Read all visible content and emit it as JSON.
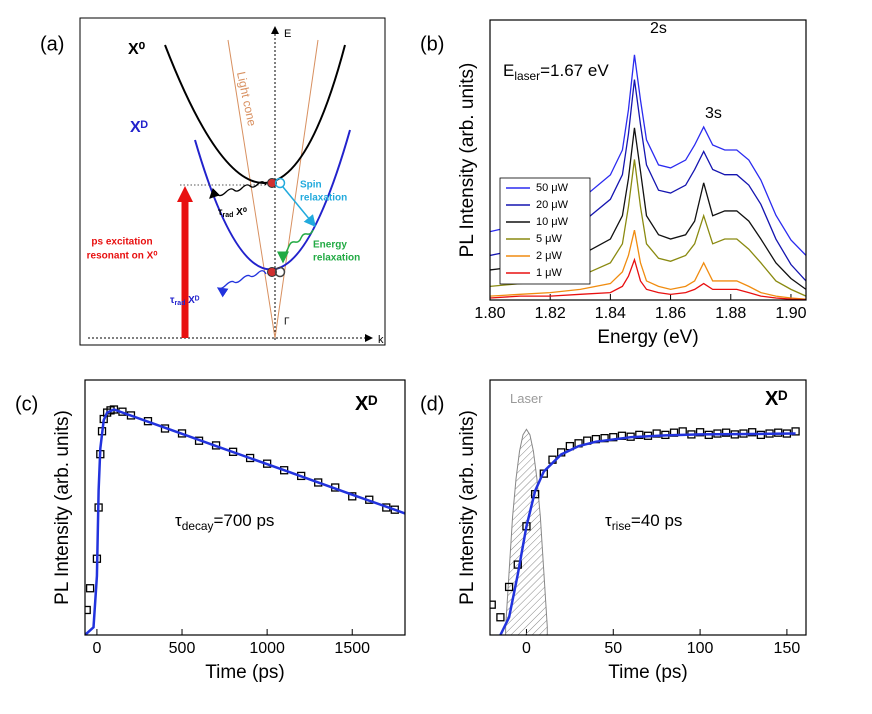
{
  "diagram": {
    "panel": "(a)",
    "x0_label": "X⁰",
    "xd_label": "Xᴰ",
    "e_axis": "E",
    "k_axis": "k",
    "gamma": "Γ",
    "light_cone": "Light cone",
    "spin": [
      "Spin",
      "relaxation"
    ],
    "energy": [
      "Energy",
      "relaxation"
    ],
    "excitation": [
      "ps excitation",
      "resonant on X⁰"
    ],
    "tau_x0": [
      "τ",
      "rad",
      " X⁰"
    ],
    "tau_xd": [
      "τ",
      "rad",
      " Xᴰ"
    ]
  },
  "chart_data": [
    {
      "type": "line",
      "panel": "(b)",
      "xlabel": "Energy (eV)",
      "ylabel": "PL Intensity (arb. units)",
      "yscale": "log",
      "legend": "lower left",
      "xlim": [
        1.8,
        1.905
      ],
      "xticks": [
        {
          "value": 1.8,
          "label": "1.80"
        },
        {
          "value": 1.82,
          "label": "1.82"
        },
        {
          "value": 1.84,
          "label": "1.84"
        },
        {
          "value": 1.86,
          "label": "1.86"
        },
        {
          "value": 1.88,
          "label": "1.88"
        },
        {
          "value": 1.9,
          "label": "1.90"
        }
      ],
      "ylim": [
        1,
        1000
      ],
      "annotations": [
        {
          "runs": [
            {
              "text": "E"
            },
            {
              "text": "laser",
              "sub": true
            },
            {
              "text": "=1.67 eV"
            }
          ]
        },
        {
          "runs": [
            {
              "text": "2s"
            }
          ]
        },
        {
          "runs": [
            {
              "text": "3s"
            }
          ]
        }
      ],
      "x": [
        1.8,
        1.81,
        1.82,
        1.83,
        1.84,
        1.844,
        1.846,
        1.848,
        1.85,
        1.852,
        1.856,
        1.86,
        1.865,
        1.868,
        1.871,
        1.874,
        1.878,
        1.882,
        1.886,
        1.89,
        1.895,
        1.9,
        1.905
      ],
      "series": [
        {
          "name": "50 μW",
          "color": "#2b2bf0",
          "values": [
            5.4,
            6.4,
            8.1,
            11.8,
            21.9,
            40.5,
            109,
            423,
            139,
            51.9,
            28,
            26,
            31.6,
            45.8,
            71.5,
            45.8,
            40.5,
            40.5,
            31.6,
            19.3,
            8.1,
            4.4,
            3.0
          ]
        },
        {
          "name": "20 μW",
          "color": "#1515b0",
          "values": [
            3.0,
            3.5,
            4.5,
            6.5,
            12,
            22,
            60,
            230,
            76,
            28,
            15,
            14,
            17,
            25,
            39,
            25,
            22,
            22,
            17,
            10.6,
            4.5,
            2.4,
            1.6
          ]
        },
        {
          "name": "10 μW",
          "color": "#111111",
          "values": [
            2.1,
            2.3,
            2.6,
            3.0,
            4.5,
            8,
            20,
            70,
            24,
            8,
            5,
            4.5,
            5,
            7,
            18,
            8,
            9,
            9,
            7,
            4.5,
            2.5,
            1.7,
            1.3
          ]
        },
        {
          "name": "5 μW",
          "color": "#8a8a10",
          "values": [
            1.4,
            1.5,
            1.6,
            1.8,
            2.5,
            4,
            10,
            32,
            10,
            4,
            2.8,
            2.6,
            3,
            4,
            8,
            4,
            4.5,
            4.5,
            3.5,
            2.5,
            1.6,
            1.3,
            1.1
          ]
        },
        {
          "name": "2 μW",
          "color": "#f08c10",
          "values": [
            1.1,
            1.15,
            1.2,
            1.3,
            1.5,
            2,
            3,
            5.6,
            2.5,
            1.6,
            1.4,
            1.3,
            1.4,
            1.6,
            2.5,
            1.6,
            1.6,
            1.6,
            1.4,
            1.2,
            1.1,
            1.05,
            1.02
          ]
        },
        {
          "name": "1 μW",
          "color": "#e81010",
          "values": [
            1.05,
            1.1,
            1.1,
            1.15,
            1.2,
            1.4,
            1.8,
            2.7,
            1.6,
            1.3,
            1.2,
            1.15,
            1.2,
            1.3,
            1.5,
            1.3,
            1.3,
            1.3,
            1.2,
            1.1,
            1.05,
            1.02,
            1.01
          ]
        }
      ]
    },
    {
      "type": "scatter",
      "panel": "(c)",
      "xlabel": "Time (ps)",
      "ylabel": "PL Intensity (arb. units)",
      "yscale": "log",
      "xlim": [
        -70,
        1810
      ],
      "xticks": [
        0,
        500,
        1000,
        1500
      ],
      "ylim": [
        0.005,
        2
      ],
      "annotations": [
        {
          "runs": [
            {
              "text": "Xᴰ"
            }
          ],
          "bold": true
        },
        {
          "runs": [
            {
              "text": "τ"
            },
            {
              "text": "decay",
              "sub": true
            },
            {
              "text": "=700 ps"
            }
          ]
        }
      ],
      "series": [
        {
          "mode": "markers",
          "color": "#000000",
          "x": [
            -60,
            -40,
            0,
            10,
            20,
            30,
            40,
            60,
            80,
            100,
            150,
            200,
            300,
            400,
            500,
            600,
            700,
            800,
            900,
            1000,
            1100,
            1200,
            1300,
            1400,
            1500,
            1600,
            1700,
            1750
          ],
          "values": [
            0.009,
            0.015,
            0.03,
            0.1,
            0.35,
            0.6,
            0.8,
            0.93,
            0.98,
            1,
            0.95,
            0.87,
            0.76,
            0.64,
            0.57,
            0.48,
            0.43,
            0.37,
            0.32,
            0.28,
            0.24,
            0.21,
            0.18,
            0.16,
            0.13,
            0.12,
            0.1,
            0.095
          ]
        },
        {
          "mode": "line",
          "color": "#2233dd",
          "x": [
            -70,
            -20,
            0,
            10,
            20,
            40,
            60,
            100,
            300,
            500,
            700,
            900,
            1100,
            1300,
            1500,
            1700,
            1810
          ],
          "values": [
            0.005,
            0.006,
            0.02,
            0.15,
            0.4,
            0.78,
            0.93,
            1,
            0.751,
            0.565,
            0.424,
            0.319,
            0.24,
            0.18,
            0.135,
            0.102,
            0.087
          ]
        }
      ]
    },
    {
      "type": "scatter",
      "panel": "(d)",
      "xlabel": "Time (ps)",
      "ylabel": "PL Intensity (arb. units)",
      "yscale": "log",
      "xlim": [
        -21,
        161
      ],
      "xticks": [
        0,
        50,
        100,
        150
      ],
      "ylim": [
        0.01,
        3.4
      ],
      "annotations": [
        {
          "runs": [
            {
              "text": "Laser"
            }
          ],
          "color": "#999999"
        },
        {
          "runs": [
            {
              "text": "Xᴰ"
            }
          ],
          "bold": true
        },
        {
          "runs": [
            {
              "text": "τ"
            },
            {
              "text": "rise",
              "sub": true
            },
            {
              "text": "=40 ps"
            }
          ]
        }
      ],
      "series": [
        {
          "mode": "area",
          "color": "#888888",
          "x": [
            -12,
            -8,
            -6,
            -4,
            -2,
            0,
            2,
            4,
            6,
            8,
            12
          ],
          "values": [
            0.012,
            0.149,
            0.357,
            0.667,
            0.971,
            1.1,
            0.971,
            0.667,
            0.357,
            0.149,
            0.012
          ]
        },
        {
          "mode": "markers",
          "color": "#000000",
          "x": [
            -20,
            -15,
            -10,
            -5,
            0,
            5,
            10,
            15,
            20,
            25,
            30,
            35,
            40,
            45,
            50,
            55,
            60,
            65,
            70,
            75,
            80,
            85,
            90,
            95,
            100,
            105,
            110,
            115,
            120,
            125,
            130,
            135,
            140,
            145,
            150,
            155
          ],
          "values": [
            0.02,
            0.015,
            0.03,
            0.05,
            0.12,
            0.25,
            0.4,
            0.55,
            0.65,
            0.75,
            0.8,
            0.85,
            0.88,
            0.9,
            0.92,
            0.95,
            0.93,
            0.97,
            0.95,
            1.0,
            0.97,
            1.02,
            1.05,
            0.98,
            1.03,
            0.97,
            1.0,
            1.02,
            0.98,
            1.0,
            1.03,
            0.97,
            1.0,
            1.02,
            1.0,
            1.05
          ]
        },
        {
          "mode": "line",
          "color": "#2233dd",
          "x": [
            -15,
            -10,
            -5,
            0,
            5,
            10,
            20,
            30,
            40,
            60,
            80,
            100,
            130,
            155
          ],
          "values": [
            0.01,
            0.015,
            0.04,
            0.12,
            0.27,
            0.42,
            0.62,
            0.75,
            0.83,
            0.92,
            0.96,
            0.98,
            0.99,
            1.0
          ]
        }
      ]
    }
  ]
}
